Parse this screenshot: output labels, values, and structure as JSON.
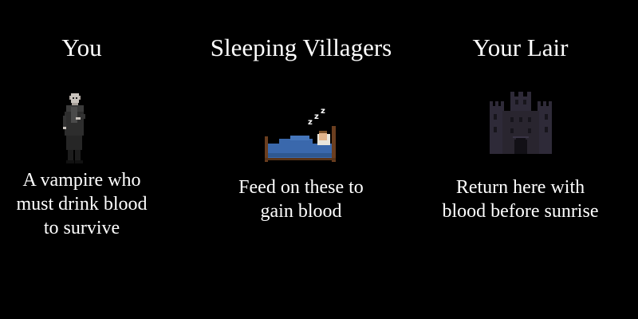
{
  "panels": {
    "you": {
      "title": "You",
      "description": "A vampire who\nmust drink blood\nto survive",
      "icon": "vampire-icon"
    },
    "villagers": {
      "title": "Sleeping Villagers",
      "description": "Feed on these to\ngain blood",
      "icon": "sleeping-villager-bed-icon"
    },
    "lair": {
      "title": "Your Lair",
      "description": "Return here with\nblood before sunrise",
      "icon": "castle-icon"
    }
  },
  "colors": {
    "background": "#000000",
    "text": "#ffffff",
    "blanket": "#3a68ac",
    "castle": "#2e2a38"
  }
}
